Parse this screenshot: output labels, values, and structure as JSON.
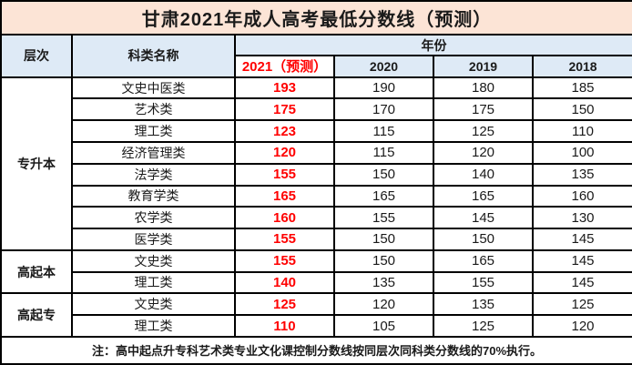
{
  "title": "甘肃2021年成人高考最低分数线（预测）",
  "colors": {
    "title_bg": "#FCE4D6",
    "header_bg": "#DEEAF6",
    "highlight_red": "#FF0000",
    "border": "#000000",
    "cell_bg": "#FFFFFF"
  },
  "header": {
    "level": "层次",
    "category": "科类名称",
    "year_group": "年份",
    "years": [
      "2021（预测）",
      "2020",
      "2019",
      "2018"
    ]
  },
  "groups": [
    {
      "label": "专升本",
      "rowspan": 8
    },
    {
      "label": "高起本",
      "rowspan": 2
    },
    {
      "label": "高起专",
      "rowspan": 2
    }
  ],
  "note": "注：高中起点升专科艺术类专业文化课控制分数线按同层次同科类分数线的70%执行。",
  "chart_data": {
    "type": "table",
    "title": "甘肃2021年成人高考最低分数线（预测）",
    "columns": [
      "层次",
      "科类名称",
      "2021（预测）",
      "2020",
      "2019",
      "2018"
    ],
    "rows": [
      [
        "专升本",
        "文史中医类",
        193,
        190,
        180,
        185
      ],
      [
        "专升本",
        "艺术类",
        175,
        170,
        175,
        150
      ],
      [
        "专升本",
        "理工类",
        123,
        115,
        125,
        110
      ],
      [
        "专升本",
        "经济管理类",
        120,
        115,
        120,
        100
      ],
      [
        "专升本",
        "法学类",
        155,
        150,
        140,
        135
      ],
      [
        "专升本",
        "教育学类",
        165,
        165,
        165,
        160
      ],
      [
        "专升本",
        "农学类",
        160,
        155,
        145,
        130
      ],
      [
        "专升本",
        "医学类",
        155,
        150,
        150,
        145
      ],
      [
        "高起本",
        "文史类",
        155,
        150,
        165,
        145
      ],
      [
        "高起本",
        "理工类",
        140,
        135,
        155,
        145
      ],
      [
        "高起专",
        "文史类",
        125,
        120,
        135,
        125
      ],
      [
        "高起专",
        "理工类",
        110,
        105,
        125,
        120
      ]
    ],
    "highlighted_column": "2021（预测）",
    "note": "注：高中起点升专科艺术类专业文化课控制分数线按同层次同科类分数线的70%执行。"
  }
}
